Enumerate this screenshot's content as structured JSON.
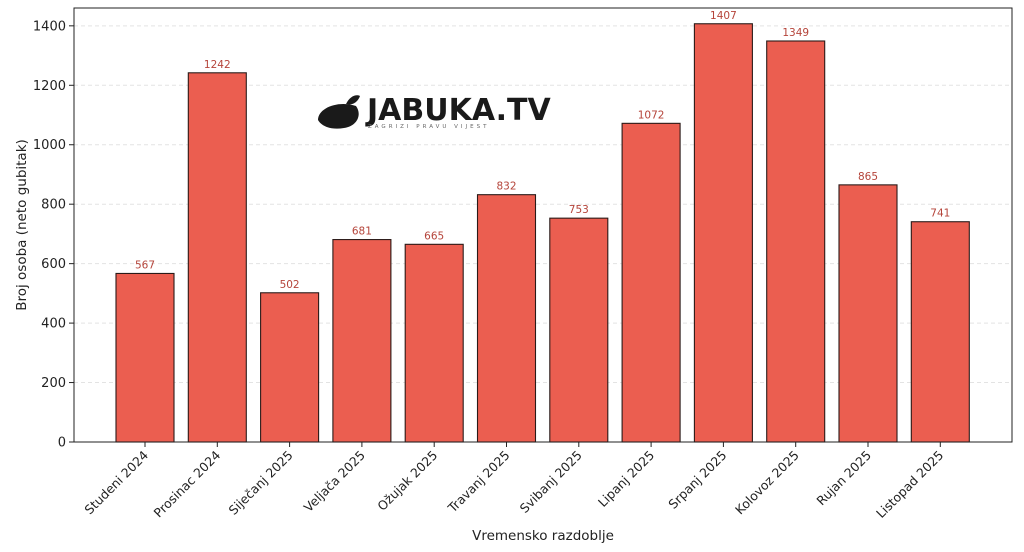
{
  "watermark": {
    "brand": "JABUKA.TV",
    "tagline": "ZAGRIZI PRAVU VIJEST"
  },
  "chart_data": {
    "type": "bar",
    "title": "",
    "xlabel": "Vremensko razdoblje",
    "ylabel": "Broj osoba (neto gubitak)",
    "ylim": [
      0,
      1460
    ],
    "yticks": [
      0,
      200,
      400,
      600,
      800,
      1000,
      1200,
      1400
    ],
    "grid": true,
    "categories": [
      "Studeni 2024",
      "Prosinac 2024",
      "Siječanj 2025",
      "Veljača 2025",
      "Ožujak 2025",
      "Travanj 2025",
      "Svibanj 2025",
      "Lipanj 2025",
      "Srpanj 2025",
      "Kolovoz 2025",
      "Rujan 2025",
      "Listopad 2025"
    ],
    "values": [
      567,
      1242,
      502,
      681,
      665,
      832,
      753,
      1072,
      1407,
      1349,
      865,
      741
    ],
    "value_labels": [
      "567",
      "1242",
      "502",
      "681",
      "665",
      "832",
      "753",
      "1072",
      "1407",
      "1349",
      "865",
      "741"
    ],
    "colors": {
      "bar": "#eb5e50",
      "edge": "#2b1a18",
      "label": "#b5443a"
    }
  }
}
